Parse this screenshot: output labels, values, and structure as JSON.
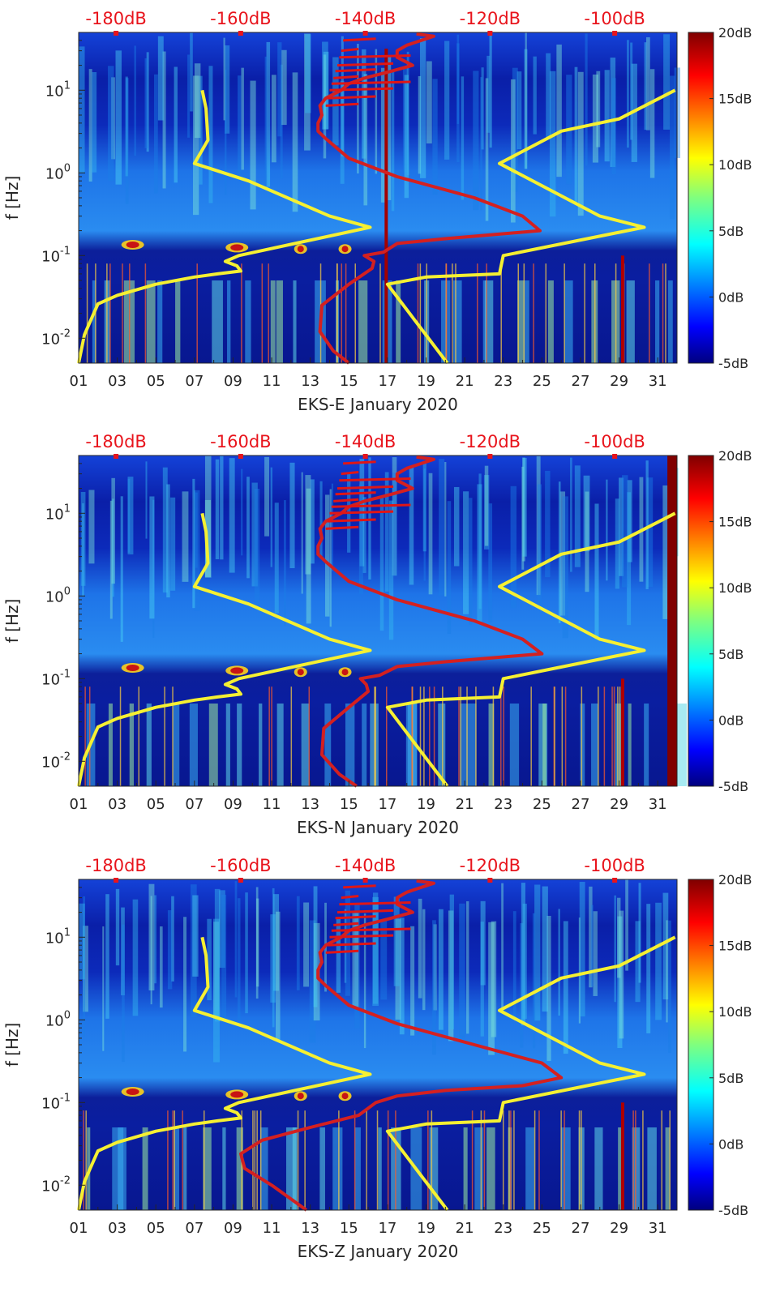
{
  "figure": {
    "panels": [
      {
        "xlabel": "EKS-E January 2020",
        "ylabel": "f [Hz]"
      },
      {
        "xlabel": "EKS-N January 2020",
        "ylabel": "f [Hz]"
      },
      {
        "xlabel": "EKS-Z January 2020",
        "ylabel": "f [Hz]"
      }
    ],
    "colors": {
      "yellow_curve": "#f5f032",
      "red_curve": "#d42020",
      "top_axis_text": "#e8141c",
      "background": "#0a1e9c"
    }
  },
  "chart_data": [
    {
      "type": "heatmap",
      "title": "",
      "xlabel": "EKS-E January 2020",
      "ylabel": "f [Hz]",
      "x_ticks": [
        "01",
        "03",
        "05",
        "07",
        "09",
        "11",
        "13",
        "15",
        "17",
        "19",
        "21",
        "23",
        "25",
        "27",
        "29",
        "31"
      ],
      "y_ticks": [
        {
          "label": "10",
          "exp": "-2",
          "value": 0.01
        },
        {
          "label": "10",
          "exp": "-1",
          "value": 0.1
        },
        {
          "label": "10",
          "exp": "0",
          "value": 1
        },
        {
          "label": "10",
          "exp": "1",
          "value": 10
        }
      ],
      "top_ticks": [
        {
          "label": "-180dB",
          "value": -180
        },
        {
          "label": "-160dB",
          "value": -160
        },
        {
          "label": "-140dB",
          "value": -140
        },
        {
          "label": "-120dB",
          "value": -120
        },
        {
          "label": "-100dB",
          "value": -100
        }
      ],
      "xlim": [
        1,
        32
      ],
      "ylim": [
        0.005,
        50
      ],
      "top_xlim": [
        -186,
        -90
      ],
      "colorbar": {
        "range": [
          -5,
          20
        ],
        "ticks": [
          "20dB",
          "15dB",
          "10dB",
          "5dB",
          "0dB",
          "-5dB"
        ]
      },
      "series": [
        {
          "name": "yellow model curve",
          "color": "#f5f032",
          "x": [
            1,
            1.3,
            1.6,
            2,
            3,
            5,
            7,
            8.2,
            9.4,
            9.2,
            8.6,
            9.3,
            16.1,
            14,
            9.8,
            7,
            7.7,
            7.6,
            7.4
          ],
          "y": [
            0.005,
            0.011,
            0.016,
            0.026,
            0.033,
            0.045,
            0.055,
            0.06,
            0.065,
            0.075,
            0.085,
            0.1,
            0.22,
            0.3,
            0.8,
            1.3,
            2.5,
            6,
            10
          ]
        },
        {
          "name": "yellow model curve right",
          "color": "#f5f032",
          "x": [
            20.1,
            17,
            19,
            22.8,
            23,
            30.3,
            28,
            22.8,
            26,
            29,
            31.9
          ],
          "y": [
            0.005,
            0.045,
            0.055,
            0.06,
            0.1,
            0.22,
            0.3,
            1.3,
            3.2,
            4.5,
            10
          ]
        },
        {
          "name": "red noise curve",
          "color": "#d42020",
          "x": [
            15,
            14.2,
            13.5,
            13.6,
            15,
            16.2,
            16.3,
            15.8,
            16.8,
            17.5,
            20,
            24.9,
            24,
            21.5,
            17.5,
            15,
            13.8,
            13.4,
            13.4,
            13.6,
            13.5,
            13.8,
            14.6,
            15,
            15.8,
            17.2,
            18.3,
            17.5,
            17.5,
            18,
            19.4,
            18.5
          ],
          "y": [
            0.005,
            0.007,
            0.012,
            0.025,
            0.045,
            0.07,
            0.085,
            0.1,
            0.11,
            0.14,
            0.16,
            0.2,
            0.3,
            0.5,
            0.9,
            1.5,
            2.6,
            3.2,
            4,
            5,
            6.5,
            8,
            10,
            12,
            14,
            17,
            20,
            25,
            30,
            35,
            45,
            48
          ]
        }
      ]
    },
    {
      "type": "heatmap",
      "title": "",
      "xlabel": "EKS-N January 2020",
      "ylabel": "f [Hz]",
      "x_ticks": [
        "01",
        "03",
        "05",
        "07",
        "09",
        "11",
        "13",
        "15",
        "17",
        "19",
        "21",
        "23",
        "25",
        "27",
        "29",
        "31"
      ],
      "y_ticks": [
        {
          "label": "10",
          "exp": "-2",
          "value": 0.01
        },
        {
          "label": "10",
          "exp": "-1",
          "value": 0.1
        },
        {
          "label": "10",
          "exp": "0",
          "value": 1
        },
        {
          "label": "10",
          "exp": "1",
          "value": 10
        }
      ],
      "top_ticks": [
        {
          "label": "-180dB",
          "value": -180
        },
        {
          "label": "-160dB",
          "value": -160
        },
        {
          "label": "-140dB",
          "value": -140
        },
        {
          "label": "-120dB",
          "value": -120
        },
        {
          "label": "-100dB",
          "value": -100
        }
      ],
      "xlim": [
        1,
        32
      ],
      "ylim": [
        0.005,
        50
      ],
      "top_xlim": [
        -186,
        -90
      ],
      "colorbar": {
        "range": [
          -5,
          20
        ],
        "ticks": [
          "20dB",
          "15dB",
          "10dB",
          "5dB",
          "0dB",
          "-5dB"
        ]
      },
      "series": [
        {
          "name": "yellow model curve",
          "color": "#f5f032",
          "x": [
            1,
            1.3,
            1.6,
            2,
            3,
            5,
            7,
            8.2,
            9.4,
            9.2,
            8.6,
            9.3,
            16.1,
            14,
            9.8,
            7,
            7.7,
            7.6,
            7.4
          ],
          "y": [
            0.005,
            0.011,
            0.016,
            0.026,
            0.033,
            0.045,
            0.055,
            0.06,
            0.065,
            0.075,
            0.085,
            0.1,
            0.22,
            0.3,
            0.8,
            1.3,
            2.5,
            6,
            10
          ]
        },
        {
          "name": "yellow model curve right",
          "color": "#f5f032",
          "x": [
            20.1,
            17,
            19,
            22.8,
            23,
            30.3,
            28,
            22.8,
            26,
            29,
            31.9
          ],
          "y": [
            0.005,
            0.045,
            0.055,
            0.06,
            0.1,
            0.22,
            0.3,
            1.3,
            3.2,
            4.5,
            10
          ]
        },
        {
          "name": "red noise curve",
          "color": "#d42020",
          "x": [
            15.4,
            14.5,
            13.6,
            13.7,
            15,
            16,
            15.9,
            15.6,
            16.6,
            17.5,
            20,
            25,
            24,
            21.5,
            17.5,
            15,
            13.8,
            13.4,
            13.4,
            13.6,
            13.5,
            13.8,
            14.6,
            15,
            15.8,
            17.2,
            18.3,
            17.5,
            17.5,
            18,
            19.4,
            18.5
          ],
          "y": [
            0.005,
            0.007,
            0.012,
            0.025,
            0.045,
            0.07,
            0.085,
            0.1,
            0.11,
            0.14,
            0.16,
            0.2,
            0.3,
            0.5,
            0.9,
            1.5,
            2.6,
            3.2,
            4,
            5,
            6.5,
            8,
            10,
            12,
            14,
            17,
            20,
            25,
            30,
            35,
            45,
            48
          ]
        }
      ]
    },
    {
      "type": "heatmap",
      "title": "",
      "xlabel": "EKS-Z January 2020",
      "ylabel": "f [Hz]",
      "x_ticks": [
        "01",
        "03",
        "05",
        "07",
        "09",
        "11",
        "13",
        "15",
        "17",
        "19",
        "21",
        "23",
        "25",
        "27",
        "29",
        "31"
      ],
      "y_ticks": [
        {
          "label": "10",
          "exp": "-2",
          "value": 0.01
        },
        {
          "label": "10",
          "exp": "-1",
          "value": 0.1
        },
        {
          "label": "10",
          "exp": "0",
          "value": 1
        },
        {
          "label": "10",
          "exp": "1",
          "value": 10
        }
      ],
      "top_ticks": [
        {
          "label": "-180dB",
          "value": -180
        },
        {
          "label": "-160dB",
          "value": -160
        },
        {
          "label": "-140dB",
          "value": -140
        },
        {
          "label": "-120dB",
          "value": -120
        },
        {
          "label": "-100dB",
          "value": -100
        }
      ],
      "xlim": [
        1,
        32
      ],
      "ylim": [
        0.005,
        50
      ],
      "top_xlim": [
        -186,
        -90
      ],
      "colorbar": {
        "range": [
          -5,
          20
        ],
        "ticks": [
          "20dB",
          "15dB",
          "10dB",
          "5dB",
          "0dB",
          "-5dB"
        ]
      },
      "series": [
        {
          "name": "yellow model curve",
          "color": "#f5f032",
          "x": [
            1,
            1.3,
            1.6,
            2,
            3,
            5,
            7,
            8.2,
            9.4,
            9.2,
            8.6,
            9.3,
            16.1,
            14,
            9.8,
            7,
            7.7,
            7.6,
            7.4
          ],
          "y": [
            0.005,
            0.011,
            0.016,
            0.026,
            0.033,
            0.045,
            0.055,
            0.06,
            0.065,
            0.075,
            0.085,
            0.1,
            0.22,
            0.3,
            0.8,
            1.3,
            2.5,
            6,
            10
          ]
        },
        {
          "name": "yellow model curve right",
          "color": "#f5f032",
          "x": [
            20.1,
            17,
            19,
            22.8,
            23,
            30.3,
            28,
            22.8,
            26,
            29,
            31.9
          ],
          "y": [
            0.005,
            0.045,
            0.055,
            0.06,
            0.1,
            0.22,
            0.3,
            1.3,
            3.2,
            4.5,
            10
          ]
        },
        {
          "name": "red noise curve",
          "color": "#d42020",
          "x": [
            12.8,
            11,
            9.6,
            9.4,
            10.5,
            13,
            15.5,
            16.4,
            17.5,
            20,
            24,
            26,
            25,
            21.5,
            17.5,
            15,
            13.8,
            13.4,
            13.4,
            13.6,
            13.5,
            13.8,
            14.6,
            15,
            15.8,
            17.2,
            18.3,
            17.5,
            17.5,
            18,
            19.4,
            18.5
          ],
          "y": [
            0.005,
            0.01,
            0.016,
            0.024,
            0.035,
            0.05,
            0.07,
            0.1,
            0.12,
            0.14,
            0.16,
            0.2,
            0.3,
            0.5,
            0.9,
            1.5,
            2.6,
            3.2,
            4,
            5,
            6.5,
            8,
            10,
            12,
            14,
            17,
            20,
            25,
            30,
            35,
            45,
            48
          ]
        }
      ]
    }
  ]
}
